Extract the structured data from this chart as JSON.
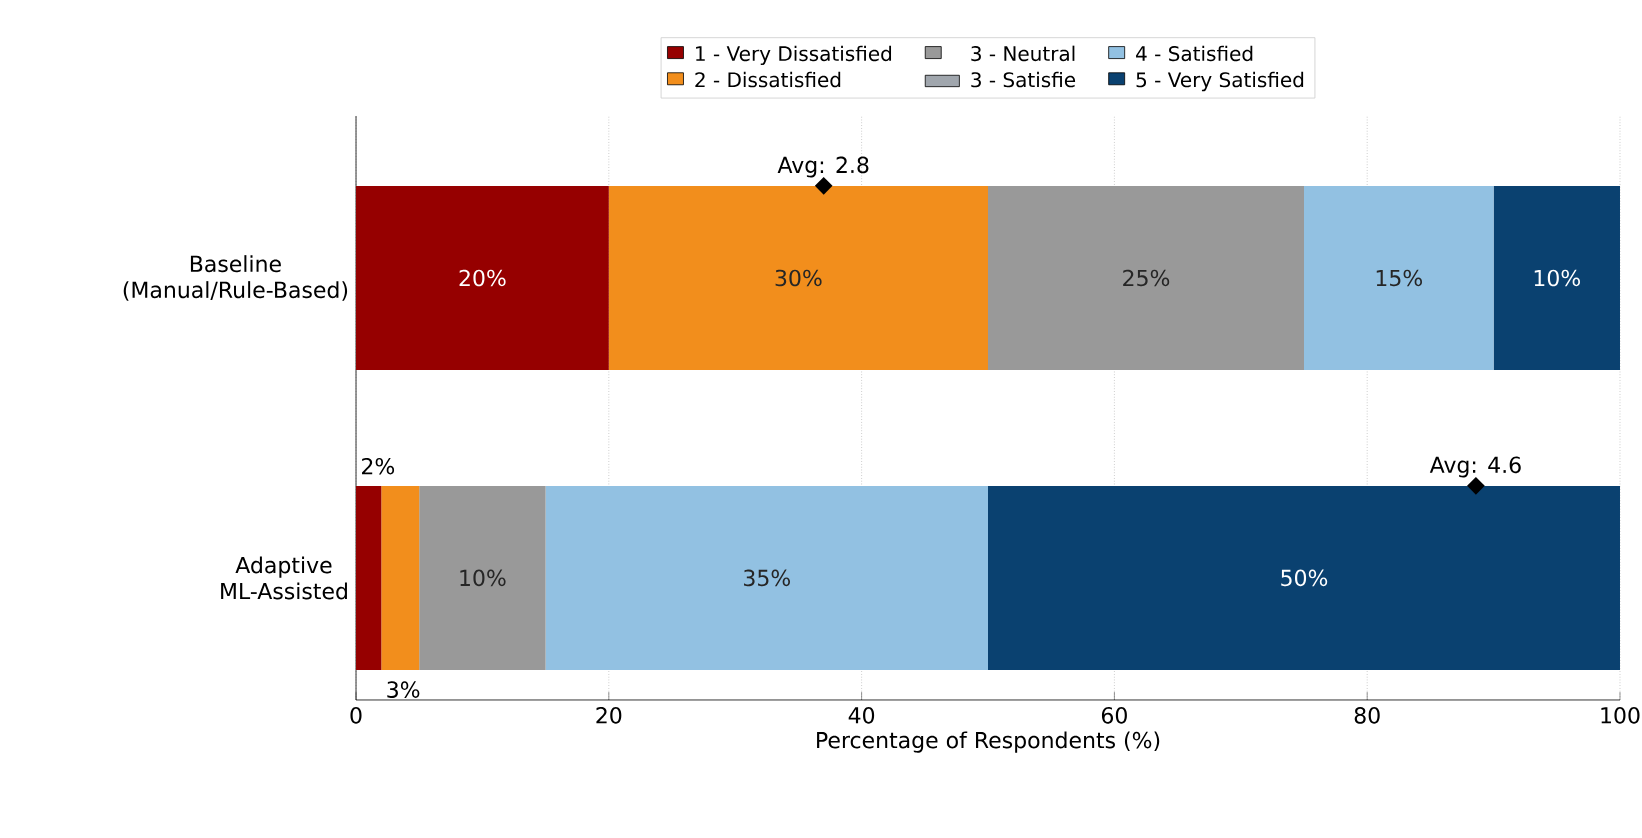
{
  "chart_data": {
    "type": "bar",
    "orientation": "horizontal",
    "stacked": true,
    "xlabel": "Percentage of Respondents (%)",
    "categories": [
      "Baseline (Manual/Rule-Based)",
      "Adaptive ML-Assisted"
    ],
    "series": [
      {
        "name": "1 - Very Dissatisfied",
        "color": "#960000",
        "values": [
          20,
          2
        ],
        "value_labels": [
          "20%",
          "2%"
        ]
      },
      {
        "name": "2 - Dissatisfied",
        "color": "#f28e1c",
        "values": [
          30,
          3
        ],
        "value_labels": [
          "30%",
          "3%"
        ]
      },
      {
        "name": "3 - Neutral",
        "color": "#999999",
        "values": [
          25,
          10
        ],
        "value_labels": [
          "25%",
          "10%"
        ]
      },
      {
        "name": "3 - Satisfie",
        "color": "#a0a6ad",
        "values": [
          null,
          null
        ]
      },
      {
        "name": "4 - Satisfied",
        "color": "#92c1e2",
        "values": [
          15,
          35
        ],
        "value_labels": [
          "15%",
          "35%"
        ]
      },
      {
        "name": "5 - Very Satisfied",
        "color": "#0a4170",
        "values": [
          10,
          50
        ],
        "value_labels": [
          "10%",
          "50%"
        ]
      },
      {
        "type": "scatter",
        "color": "#000000",
        "marker": "diamond",
        "values": [
          37,
          88.6
        ]
      }
    ],
    "xlim": [
      0,
      100
    ],
    "xticks": [
      0,
      20,
      40,
      60,
      80,
      100
    ],
    "grid": "x",
    "legend": "top",
    "annotations": [
      "Avg: 2.8",
      "Avg: 4.6"
    ]
  }
}
